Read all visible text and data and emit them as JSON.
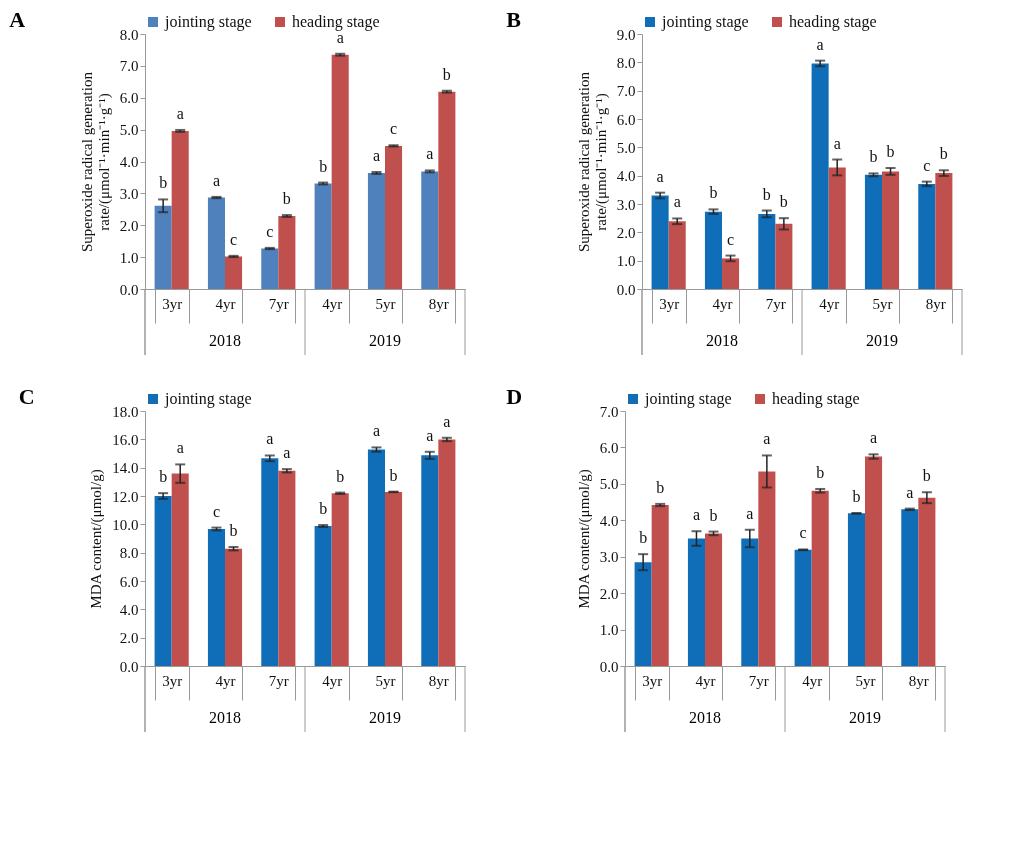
{
  "chart_data": [
    {
      "type": "bar",
      "title": "A",
      "ylabel": "Superoxide radical generation rate/(μmol⁻¹·min⁻¹·g⁻¹)",
      "categories": [
        "3yr",
        "4yr",
        "7yr",
        "4yr",
        "5yr",
        "8yr"
      ],
      "annotations": [
        "2018",
        "2019"
      ],
      "legend": "top",
      "ylim": [
        0,
        8
      ],
      "yticks": [
        {
          "value": 0,
          "label": "0.0"
        },
        {
          "value": 1,
          "label": "1.0"
        },
        {
          "value": 2,
          "label": "2.0"
        },
        {
          "value": 3,
          "label": "3.0"
        },
        {
          "value": 4,
          "label": "4.0"
        },
        {
          "value": 5,
          "label": "5.0"
        },
        {
          "value": 6,
          "label": "6.0"
        },
        {
          "value": 7,
          "label": "7.0"
        },
        {
          "value": 8,
          "label": "8.0"
        }
      ],
      "series": [
        {
          "name": "jointing stage",
          "color": "#4f81bd",
          "values": [
            2.61,
            2.87,
            1.27,
            3.31,
            3.64,
            3.69
          ],
          "errors": [
            0.2,
            0.02,
            0.02,
            0.03,
            0.03,
            0.03
          ],
          "value_labels": [
            "b",
            "a",
            "c",
            "b",
            "a",
            "a"
          ]
        },
        {
          "name": "heading stage",
          "color": "#c0504d",
          "values": [
            4.96,
            1.02,
            2.29,
            7.35,
            4.49,
            6.19
          ],
          "errors": [
            0.03,
            0.02,
            0.03,
            0.03,
            0.02,
            0.03
          ],
          "value_labels": [
            "a",
            "c",
            "b",
            "a",
            "c",
            "b"
          ]
        }
      ]
    },
    {
      "type": "bar",
      "title": "B",
      "ylabel": "Superoxide radical generation rate/(μmol⁻¹·min⁻¹·g⁻¹)",
      "categories": [
        "3yr",
        "4yr",
        "7yr",
        "4yr",
        "5yr",
        "8yr"
      ],
      "annotations": [
        "2018",
        "2019"
      ],
      "legend": "top",
      "ylim": [
        0,
        9
      ],
      "yticks": [
        {
          "value": 0,
          "label": "0.0"
        },
        {
          "value": 1,
          "label": "1.0"
        },
        {
          "value": 2,
          "label": "2.0"
        },
        {
          "value": 3,
          "label": "3.0"
        },
        {
          "value": 4,
          "label": "4.0"
        },
        {
          "value": 5,
          "label": "5.0"
        },
        {
          "value": 6,
          "label": "6.0"
        },
        {
          "value": 7,
          "label": "7.0"
        },
        {
          "value": 8,
          "label": "8.0"
        },
        {
          "value": 9,
          "label": "9.0"
        }
      ],
      "series": [
        {
          "name": "jointing stage",
          "color": "#106eb8",
          "values": [
            3.3,
            2.73,
            2.65,
            7.96,
            4.03,
            3.71
          ],
          "errors": [
            0.1,
            0.08,
            0.12,
            0.1,
            0.05,
            0.08
          ],
          "value_labels": [
            "a",
            "b",
            "b",
            "a",
            "b",
            "c"
          ]
        },
        {
          "name": "heading stage",
          "color": "#c0504d",
          "values": [
            2.39,
            1.08,
            2.3,
            4.29,
            4.15,
            4.09
          ],
          "errors": [
            0.1,
            0.1,
            0.2,
            0.28,
            0.12,
            0.1
          ],
          "value_labels": [
            "a",
            "c",
            "b",
            "a",
            "b",
            "b"
          ]
        }
      ]
    },
    {
      "type": "bar",
      "title": "C",
      "ylabel": "MDA content/(μmol/g)",
      "categories": [
        "3yr",
        "4yr",
        "7yr",
        "4yr",
        "5yr",
        "8yr"
      ],
      "annotations": [
        "2018",
        "2019"
      ],
      "legend": "top",
      "ylim": [
        0,
        18
      ],
      "yticks": [
        {
          "value": 0,
          "label": "0.0"
        },
        {
          "value": 2,
          "label": "2.0"
        },
        {
          "value": 4,
          "label": "4.0"
        },
        {
          "value": 6,
          "label": "6.0"
        },
        {
          "value": 8,
          "label": "8.0"
        },
        {
          "value": 10,
          "label": "10.0"
        },
        {
          "value": 12,
          "label": "12.0"
        },
        {
          "value": 14,
          "label": "14.0"
        },
        {
          "value": 16,
          "label": "16.0"
        },
        {
          "value": 18,
          "label": "18.0"
        }
      ],
      "series": [
        {
          "name": "jointing stage",
          "color": "#106eb8",
          "values": [
            12.0,
            9.67,
            14.66,
            9.88,
            15.28,
            14.87
          ],
          "errors": [
            0.2,
            0.1,
            0.2,
            0.07,
            0.15,
            0.25
          ],
          "value_labels": [
            "b",
            "c",
            "a",
            "b",
            "a",
            "a"
          ]
        },
        {
          "color": "#c0504d",
          "values": [
            13.58,
            8.28,
            13.78,
            12.19,
            12.29,
            15.99
          ],
          "errors": [
            0.65,
            0.12,
            0.12,
            0.05,
            0.02,
            0.12
          ],
          "value_labels": [
            "a",
            "b",
            "a",
            "b",
            "b",
            "a"
          ]
        }
      ]
    },
    {
      "type": "bar",
      "title": "D",
      "ylabel": "MDA content/(μmol/g)",
      "categories": [
        "3yr",
        "4yr",
        "7yr",
        "4yr",
        "5yr",
        "8yr"
      ],
      "annotations": [
        "2018",
        "2019"
      ],
      "legend": "top",
      "ylim": [
        0,
        7
      ],
      "yticks": [
        {
          "value": 0,
          "label": "0.0"
        },
        {
          "value": 1,
          "label": "1.0"
        },
        {
          "value": 2,
          "label": "2.0"
        },
        {
          "value": 3,
          "label": "3.0"
        },
        {
          "value": 4,
          "label": "4.0"
        },
        {
          "value": 5,
          "label": "5.0"
        },
        {
          "value": 6,
          "label": "6.0"
        },
        {
          "value": 7,
          "label": "7.0"
        }
      ],
      "series": [
        {
          "name": "jointing stage",
          "color": "#106eb8",
          "values": [
            2.85,
            3.5,
            3.5,
            3.19,
            4.19,
            4.3
          ],
          "errors": [
            0.22,
            0.2,
            0.24,
            0.01,
            0.01,
            0.02
          ],
          "value_labels": [
            "b",
            "a",
            "a",
            "c",
            "b",
            "a"
          ]
        },
        {
          "name": "heading stage",
          "color": "#c0504d",
          "values": [
            4.42,
            3.64,
            5.34,
            4.81,
            5.75,
            4.62
          ],
          "errors": [
            0.03,
            0.05,
            0.44,
            0.05,
            0.06,
            0.15
          ],
          "value_labels": [
            "b",
            "b",
            "a",
            "b",
            "a",
            "b"
          ]
        }
      ]
    }
  ]
}
